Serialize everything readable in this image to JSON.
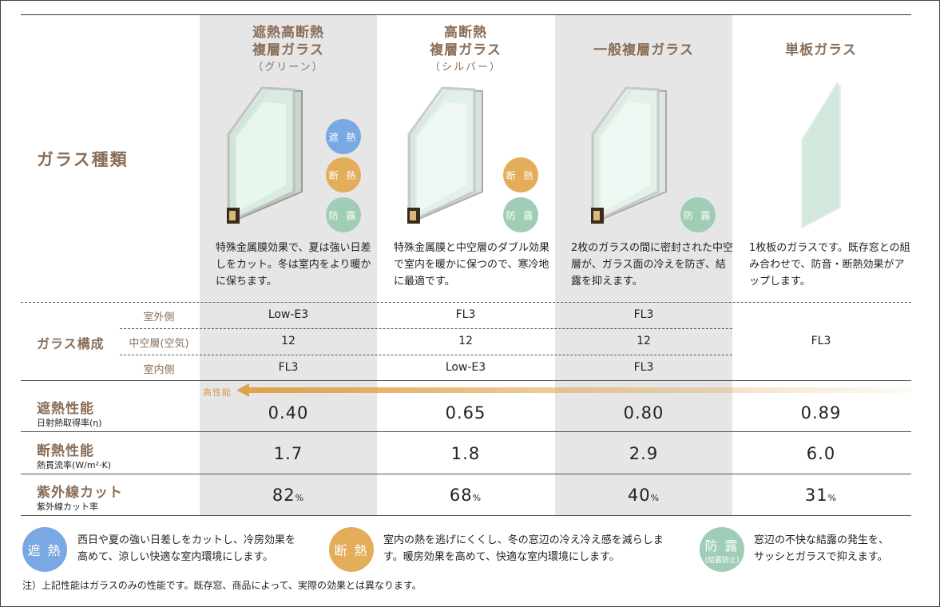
{
  "row_titles": {
    "glass_type": "ガラス種類",
    "glass_composition": "ガラス構成"
  },
  "columns": [
    {
      "title_lines": [
        "遮熱高断熱",
        "複層ガラス"
      ],
      "subtitle": "（グリーン）",
      "badges": [
        "遮 熱",
        "断 熱",
        "防 露"
      ],
      "description": "特殊金属膜効果で、夏は強い日差しをカット。冬は室内をより暖かに保ちます。"
    },
    {
      "title_lines": [
        "高断熱",
        "複層ガラス"
      ],
      "subtitle": "（シルバー）",
      "badges": [
        "断 熱",
        "防 露"
      ],
      "description": "特殊金属膜と中空層のダブル効果で室内を暖かに保つので、寒冷地に最適です。"
    },
    {
      "title_lines": [
        "一般複層ガラス",
        ""
      ],
      "subtitle": "",
      "badges": [
        "防 露"
      ],
      "description": "2枚のガラスの間に密封された中空層が、ガラス面の冷えを防ぎ、結露を抑えます。"
    },
    {
      "title_lines": [
        "単板ガラス",
        ""
      ],
      "subtitle": "",
      "badges": [],
      "description": "1枚板のガラスです。既存窓との組み合わせで、防音・断熱効果がアップします。"
    }
  ],
  "composition": {
    "labels": [
      "室外側",
      "中空層(空気)",
      "室内側"
    ],
    "values": [
      [
        "Low-E3",
        "12",
        "FL3"
      ],
      [
        "FL3",
        "12",
        "Low-E3"
      ],
      [
        "FL3",
        "12",
        "FL3"
      ]
    ],
    "single_value": "FL3"
  },
  "arrow_label": "高性能",
  "performance": [
    {
      "name": "遮熱性能",
      "sub": "日射熱取得率(η)",
      "values": [
        "0.40",
        "0.65",
        "0.80",
        "0.89"
      ],
      "unit": ""
    },
    {
      "name": "断熱性能",
      "sub": "熱貫流率(W/m²·K)",
      "values": [
        "1.7",
        "1.8",
        "2.9",
        "6.0"
      ],
      "unit": ""
    },
    {
      "name": "紫外線カット",
      "sub": "紫外線カット率",
      "values": [
        "82",
        "68",
        "40",
        "31"
      ],
      "unit": "%"
    }
  ],
  "legend": [
    {
      "badge": "遮 熱",
      "badge_sub": "",
      "lines": [
        "西日や夏の強い日差しをカットし、冷房効果を",
        "高めて、涼しい快適な室内環境にします。"
      ]
    },
    {
      "badge": "断 熱",
      "badge_sub": "",
      "lines": [
        "室内の熱を逃げにくくし、冬の窓辺の冷え冷え感を減らしま",
        "す。暖房効果を高めて、快適な室内環境にします。"
      ]
    },
    {
      "badge": "防 露",
      "badge_sub": "(結露防止)",
      "lines": [
        "窓辺の不快な結露の発生を、",
        "サッシとガラスで抑えます。"
      ]
    }
  ],
  "note": "注）上記性能はガラスのみの性能です。既存窓、商品によって、実際の効果とは異なります。",
  "colors": {
    "accent_brown": "#8a6e58",
    "column_gray": "#e6e6e6",
    "badge_shade": "#7aa8e2",
    "badge_insulation": "#e3ad5a",
    "badge_dew": "#9fcdb5",
    "arrow": "#e0a24a"
  }
}
